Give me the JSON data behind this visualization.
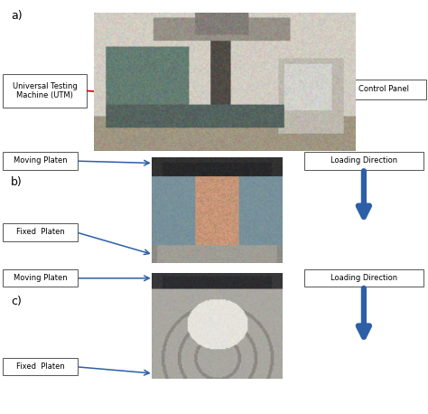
{
  "fig_width": 4.74,
  "fig_height": 4.58,
  "dpi": 100,
  "bg_color": "#ffffff",
  "panel_a_label": "a)",
  "panel_b_label": "b)",
  "panel_c_label": "c)",
  "utm_box_text": "Universal Testing\nMachine (UTM)",
  "control_panel_text": "Control Panel",
  "moving_platen_b_text": "Moving Platen",
  "fixed_platen_b_text": "Fixed  Platen",
  "moving_platen_c_text": "Moving Platen",
  "fixed_platen_c_text": "Fixed  Platen",
  "loading_dir_b_text": "Loading Direction",
  "loading_dir_c_text": "Loading Direction",
  "arrow_color_red": "#cc0000",
  "arrow_color_blue": "#2d5fa6",
  "box_edge_color": "#555555",
  "text_fontsize": 6.5,
  "label_fontsize": 9
}
